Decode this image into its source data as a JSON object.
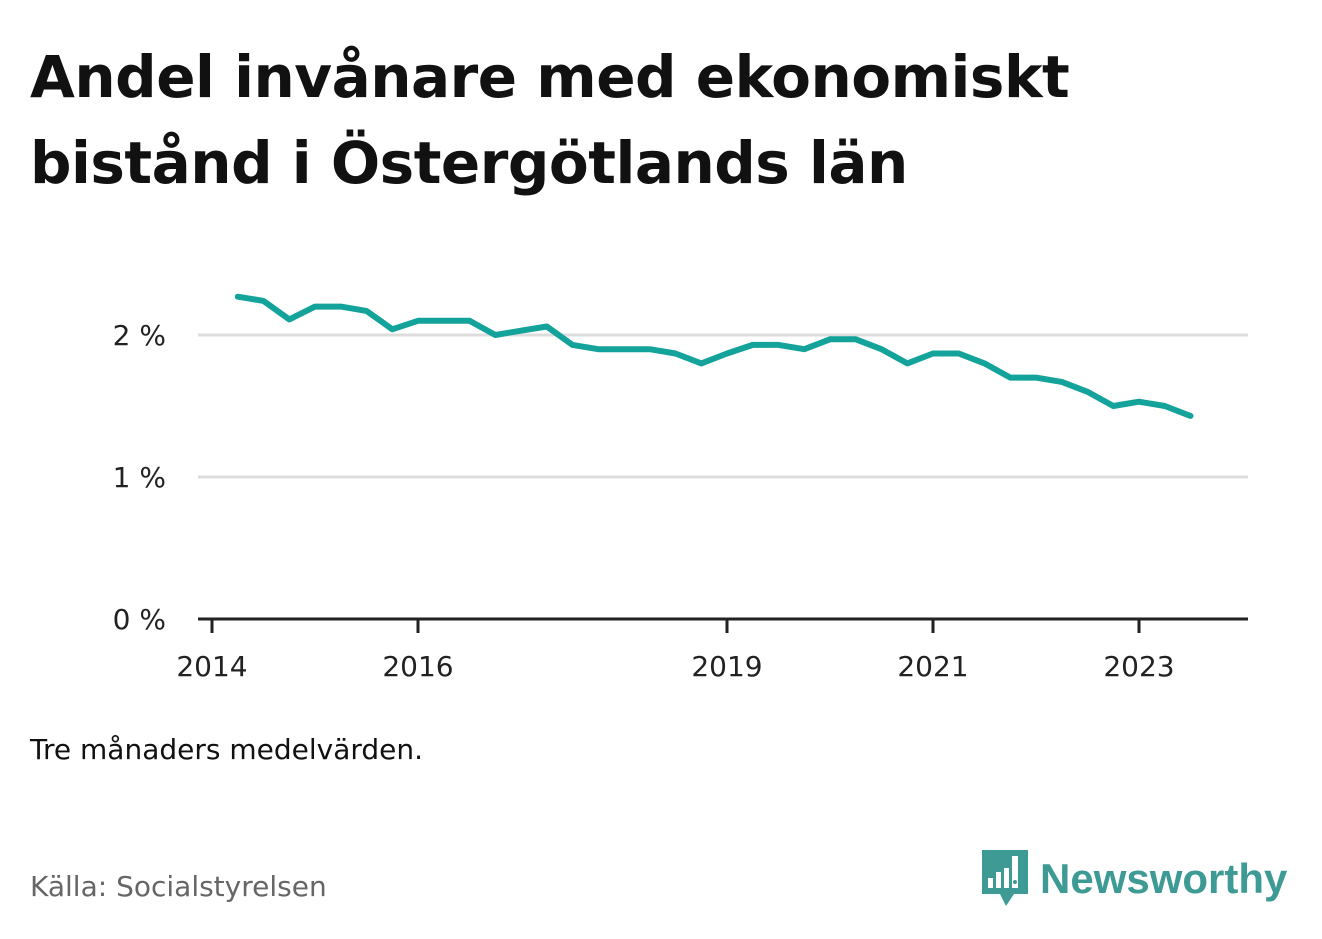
{
  "title": "Andel invånare med ekonomiskt bistånd i Östergötlands län",
  "note": "Tre månaders medelvärden.",
  "source": "Källa: Socialstyrelsen",
  "brand": {
    "name": "Newsworthy",
    "logo_icon": "bar-chart-speech-bubble-icon",
    "color": "#3d9a94"
  },
  "chart_data": {
    "type": "line",
    "title": "Andel invånare med ekonomiskt bistånd i Östergötlands län",
    "xlabel": "",
    "ylabel": "",
    "x_ticks": [
      "2014",
      "2016",
      "2019",
      "2021",
      "2023"
    ],
    "y_ticks": [
      "0 %",
      "1 %",
      "2 %"
    ],
    "ylim": [
      0,
      2.5
    ],
    "grid": true,
    "line_color": "#14a39a",
    "series": [
      {
        "x": [
          "2014-04",
          "2014-07",
          "2014-10",
          "2015-01",
          "2015-04",
          "2015-07",
          "2015-10",
          "2016-01",
          "2016-04",
          "2016-07",
          "2016-10",
          "2017-01",
          "2017-04",
          "2017-07",
          "2017-10",
          "2018-01",
          "2018-04",
          "2018-07",
          "2018-10",
          "2019-01",
          "2019-04",
          "2019-07",
          "2019-10",
          "2020-01",
          "2020-04",
          "2020-07",
          "2020-10",
          "2021-01",
          "2021-04",
          "2021-07",
          "2021-10",
          "2022-01",
          "2022-04",
          "2022-07",
          "2022-10",
          "2023-01",
          "2023-04",
          "2023-07"
        ],
        "values": [
          2.27,
          2.24,
          2.11,
          2.2,
          2.2,
          2.17,
          2.04,
          2.1,
          2.1,
          2.1,
          2.0,
          2.03,
          2.06,
          1.93,
          1.9,
          1.9,
          1.9,
          1.87,
          1.8,
          1.87,
          1.93,
          1.93,
          1.9,
          1.97,
          1.97,
          1.9,
          1.8,
          1.87,
          1.87,
          1.8,
          1.7,
          1.7,
          1.67,
          1.6,
          1.5,
          1.53,
          1.5,
          1.43
        ]
      }
    ]
  }
}
